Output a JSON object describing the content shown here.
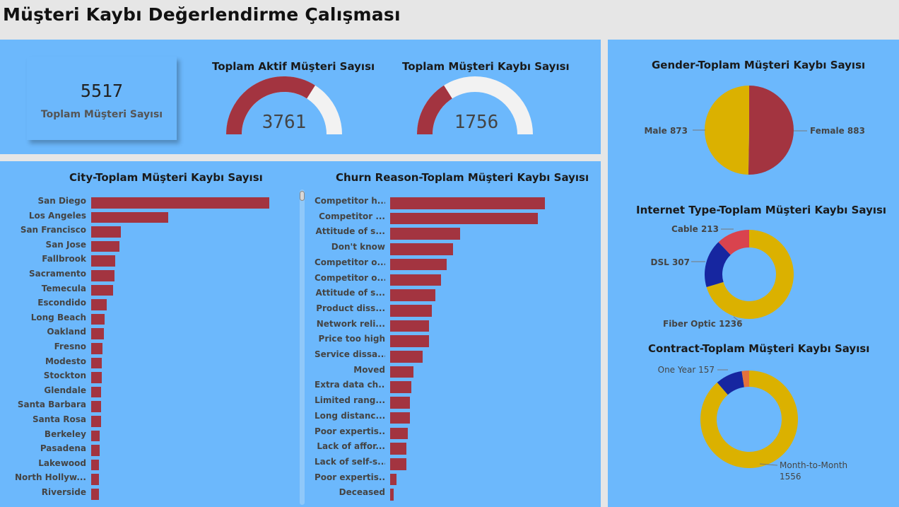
{
  "page": {
    "title": "Müşteri Kaybı Değerlendirme Çalışması"
  },
  "kpi": {
    "value": "5517",
    "label": "Toplam Müşteri Sayısı"
  },
  "gauge_active": {
    "title": "Toplam Aktif Müşteri Sayısı",
    "value": "3761",
    "fraction": 0.68,
    "fill": "#a33440",
    "track": "#f2f2f2"
  },
  "gauge_churn": {
    "title": "Toplam Müşteri Kaybı Sayısı",
    "value": "1756",
    "fraction": 0.32,
    "fill": "#a33440",
    "track": "#f2f2f2"
  },
  "colors": {
    "bar": "#a33440",
    "panel": "#6cb8fc",
    "yellow": "#dbb100",
    "navy": "#1626a0",
    "red": "#d9434e",
    "orange": "#e4723c"
  },
  "chart_data": [
    {
      "type": "bar",
      "orientation": "horizontal",
      "title": "City-Toplam Müşteri Kaybı Sayısı",
      "categories": [
        "San Diego",
        "Los Angeles",
        "San Francisco",
        "San Jose",
        "Fallbrook",
        "Sacramento",
        "Temecula",
        "Escondido",
        "Long Beach",
        "Oakland",
        "Fresno",
        "Modesto",
        "Stockton",
        "Glendale",
        "Santa Barbara",
        "Santa Rosa",
        "Berkeley",
        "Pasadena",
        "Lakewood",
        "North Hollyw...",
        "Riverside"
      ],
      "values": [
        185,
        80,
        31,
        29,
        25,
        24,
        23,
        16,
        14,
        13,
        12,
        11,
        11,
        10,
        10,
        10,
        9,
        9,
        8,
        8,
        8
      ]
    },
    {
      "type": "bar",
      "orientation": "horizontal",
      "title": "Churn Reason-Toplam Müşteri Kaybı Sayısı",
      "categories": [
        "Competitor h...",
        "Competitor ...",
        "Attitude of s...",
        "Don't know",
        "Competitor o...",
        "Competitor o...",
        "Attitude of s...",
        "Product diss...",
        "Network reli...",
        "Price too high",
        "Service dissa...",
        "Moved",
        "Extra data ch...",
        "Limited rang...",
        "Long distanc...",
        "Poor expertis...",
        "Lack of affor...",
        "Lack of self-s...",
        "Poor expertis...",
        "Deceased"
      ],
      "values": [
        289,
        276,
        130,
        117,
        106,
        95,
        85,
        78,
        73,
        73,
        61,
        44,
        40,
        37,
        37,
        33,
        31,
        30,
        12,
        6
      ]
    },
    {
      "type": "pie",
      "title": "Gender-Toplam Müşteri Kaybı Sayısı",
      "labels": [
        "Female 883",
        "Male 873"
      ],
      "values": [
        883,
        873
      ],
      "colors": [
        "#a33440",
        "#dbb100"
      ]
    },
    {
      "type": "donut",
      "title": "Internet Type-Toplam Müşteri Kaybı Sayısı",
      "labels": [
        "Fiber Optic 1236",
        "DSL 307",
        "Cable 213"
      ],
      "values": [
        1236,
        307,
        213
      ],
      "colors": [
        "#dbb100",
        "#1626a0",
        "#d9434e"
      ]
    },
    {
      "type": "donut",
      "title": "Contract-Toplam Müşteri Kaybı Sayısı",
      "labels": [
        "Month-to-Month",
        "1556",
        "One Year 157"
      ],
      "values": [
        1556,
        157,
        43
      ],
      "colors": [
        "#dbb100",
        "#1626a0",
        "#e4723c"
      ]
    }
  ]
}
